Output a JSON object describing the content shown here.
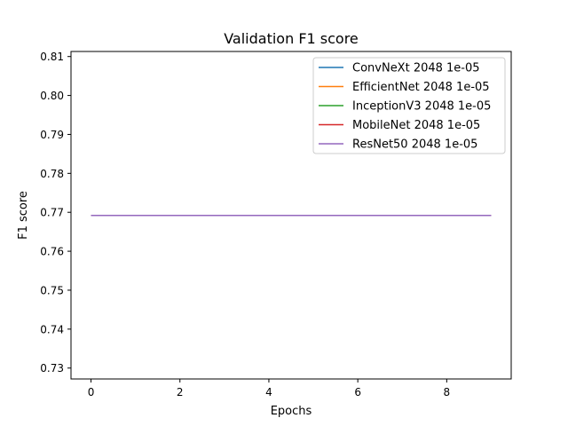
{
  "chart_data": {
    "type": "line",
    "title": "Validation F1 score",
    "xlabel": "Epochs",
    "ylabel": "F1 score",
    "xlim": [
      -0.45,
      9.45
    ],
    "ylim": [
      0.7272,
      0.8113
    ],
    "x_ticks": [
      0,
      2,
      4,
      6,
      8
    ],
    "y_ticks": [
      0.73,
      0.74,
      0.75,
      0.76,
      0.77,
      0.78,
      0.79,
      0.8,
      0.81
    ],
    "x_tick_labels": [
      "0",
      "2",
      "4",
      "6",
      "8"
    ],
    "y_tick_labels": [
      "0.73",
      "0.74",
      "0.75",
      "0.76",
      "0.77",
      "0.78",
      "0.79",
      "0.80",
      "0.81"
    ],
    "grid": false,
    "legend_position": "top-right",
    "x": [
      0,
      1,
      2,
      3,
      4,
      5,
      6,
      7,
      8,
      9
    ],
    "series": [
      {
        "name": "ConvNeXt 2048 1e-05",
        "color": "#1f77b4",
        "values": [
          0.7692,
          0.7692,
          0.7692,
          0.7692,
          0.7692,
          0.7692,
          0.7692,
          0.7692,
          0.7692,
          0.7692
        ]
      },
      {
        "name": "EfficientNet 2048 1e-05",
        "color": "#ff7f0e",
        "values": [
          0.7692,
          0.7692,
          0.7692,
          0.7692,
          0.7692,
          0.7692,
          0.7692,
          0.7692,
          0.7692,
          0.7692
        ]
      },
      {
        "name": "InceptionV3 2048 1e-05",
        "color": "#2ca02c",
        "values": [
          0.7692,
          0.7692,
          0.7692,
          0.7692,
          0.7692,
          0.7692,
          0.7692,
          0.7692,
          0.7692,
          0.7692
        ]
      },
      {
        "name": "MobileNet 2048 1e-05",
        "color": "#d62728",
        "values": [
          0.7692,
          0.7692,
          0.7692,
          0.7692,
          0.7692,
          0.7692,
          0.7692,
          0.7692,
          0.7692,
          0.7692
        ]
      },
      {
        "name": "ResNet50 2048 1e-05",
        "color": "#9467bd",
        "values": [
          0.7692,
          0.7692,
          0.7692,
          0.7692,
          0.7692,
          0.7692,
          0.7692,
          0.7692,
          0.7692,
          0.7692
        ]
      }
    ]
  }
}
